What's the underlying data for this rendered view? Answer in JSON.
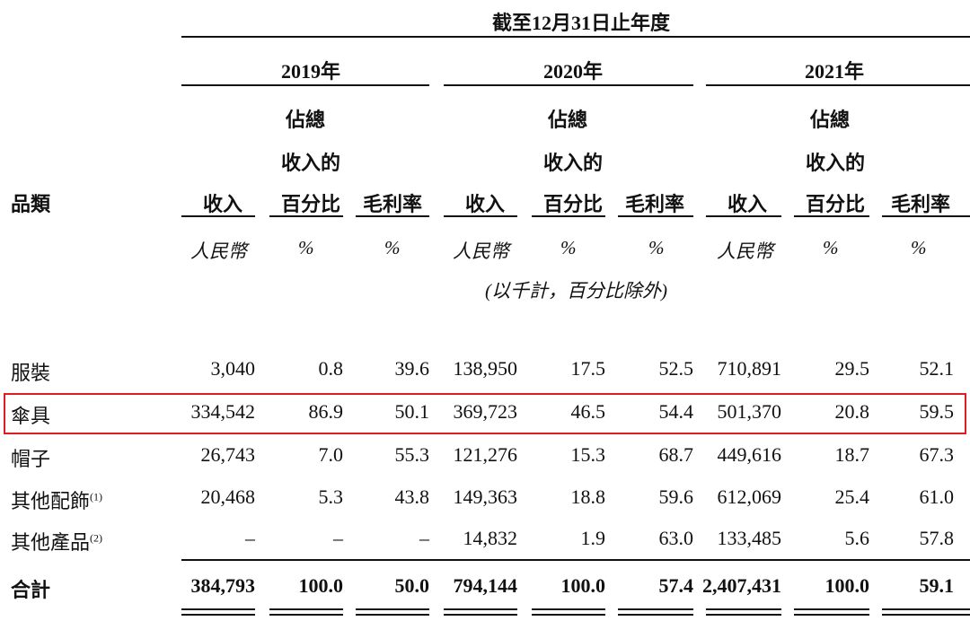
{
  "header": {
    "period": "截至12月31日止年度",
    "category_label": "品類",
    "note": "(以千計，百分比除外)"
  },
  "years": [
    {
      "year": "2019年",
      "rev": "收入",
      "pct": [
        "佔總",
        "收入的",
        "百分比"
      ],
      "margin": "毛利率",
      "units": [
        "人民幣",
        "%",
        "%"
      ]
    },
    {
      "year": "2020年",
      "rev": "收入",
      "pct": [
        "佔總",
        "收入的",
        "百分比"
      ],
      "margin": "毛利率",
      "units": [
        "人民幣",
        "%",
        "%"
      ]
    },
    {
      "year": "2021年",
      "rev": "收入",
      "pct": [
        "佔總",
        "收入的",
        "百分比"
      ],
      "margin": "毛利率",
      "units": [
        "人民幣",
        "%",
        "%"
      ]
    }
  ],
  "rows": [
    {
      "label": "服裝",
      "sup": "",
      "values": [
        "3,040",
        "0.8",
        "39.6",
        "138,950",
        "17.5",
        "52.5",
        "710,891",
        "29.5",
        "52.1"
      ]
    },
    {
      "label": "傘具",
      "sup": "",
      "values": [
        "334,542",
        "86.9",
        "50.1",
        "369,723",
        "46.5",
        "54.4",
        "501,370",
        "20.8",
        "59.5"
      ]
    },
    {
      "label": "帽子",
      "sup": "",
      "values": [
        "26,743",
        "7.0",
        "55.3",
        "121,276",
        "15.3",
        "68.7",
        "449,616",
        "18.7",
        "67.3"
      ]
    },
    {
      "label": "其他配飾",
      "sup": "(1)",
      "values": [
        "20,468",
        "5.3",
        "43.8",
        "149,363",
        "18.8",
        "59.6",
        "612,069",
        "25.4",
        "61.0"
      ]
    },
    {
      "label": "其他產品",
      "sup": "(2)",
      "values": [
        "–",
        "–",
        "–",
        "14,832",
        "1.9",
        "63.0",
        "133,485",
        "5.6",
        "57.8"
      ]
    }
  ],
  "total": {
    "label": "合計",
    "values": [
      "384,793",
      "100.0",
      "50.0",
      "794,144",
      "100.0",
      "57.4",
      "2,407,431",
      "100.0",
      "59.1"
    ]
  },
  "highlight_color": "#e21b23"
}
